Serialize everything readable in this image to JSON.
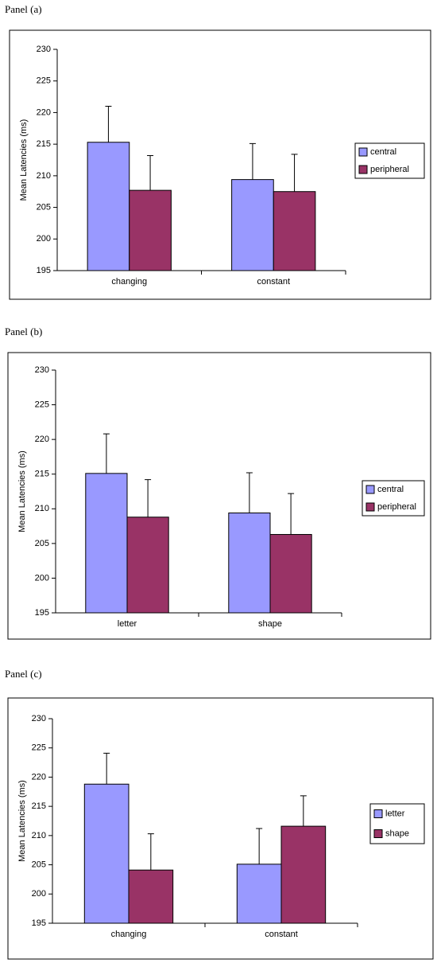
{
  "chart_data": [
    {
      "type": "bar",
      "title": "Panel (a)",
      "y_label": "Mean Latencies (ms)",
      "categories": [
        "changing",
        "constant"
      ],
      "series": [
        {
          "name": "central",
          "color": "#9999ff",
          "values": [
            215.3,
            209.4
          ],
          "errors": [
            5.7,
            5.7
          ]
        },
        {
          "name": "peripheral",
          "color": "#993366",
          "values": [
            207.7,
            207.5
          ],
          "errors": [
            5.5,
            5.9
          ]
        }
      ],
      "ylim": [
        195,
        230
      ],
      "yticks": [
        195,
        200,
        205,
        210,
        215,
        220,
        225,
        230
      ],
      "legend": "right"
    },
    {
      "type": "bar",
      "title": "Panel (b)",
      "y_label": "Mean Latencies (ms)",
      "categories": [
        "letter",
        "shape"
      ],
      "series": [
        {
          "name": "central",
          "color": "#9999ff",
          "values": [
            215.1,
            209.4
          ],
          "errors": [
            5.7,
            5.8
          ]
        },
        {
          "name": "peripheral",
          "color": "#993366",
          "values": [
            208.8,
            206.3
          ],
          "errors": [
            5.4,
            5.9
          ]
        }
      ],
      "ylim": [
        195,
        230
      ],
      "yticks": [
        195,
        200,
        205,
        210,
        215,
        220,
        225,
        230
      ],
      "legend": "right"
    },
    {
      "type": "bar",
      "title": "Panel (c)",
      "y_label": "Mean Latencies (ms)",
      "categories": [
        "changing",
        "constant"
      ],
      "series": [
        {
          "name": "letter",
          "color": "#9999ff",
          "values": [
            218.8,
            205.1
          ],
          "errors": [
            5.3,
            6.1
          ]
        },
        {
          "name": "shape",
          "color": "#993366",
          "values": [
            204.1,
            211.6
          ],
          "errors": [
            6.2,
            5.2
          ]
        }
      ],
      "ylim": [
        195,
        230
      ],
      "yticks": [
        195,
        200,
        205,
        210,
        215,
        220,
        225,
        230
      ],
      "legend": "right"
    }
  ]
}
